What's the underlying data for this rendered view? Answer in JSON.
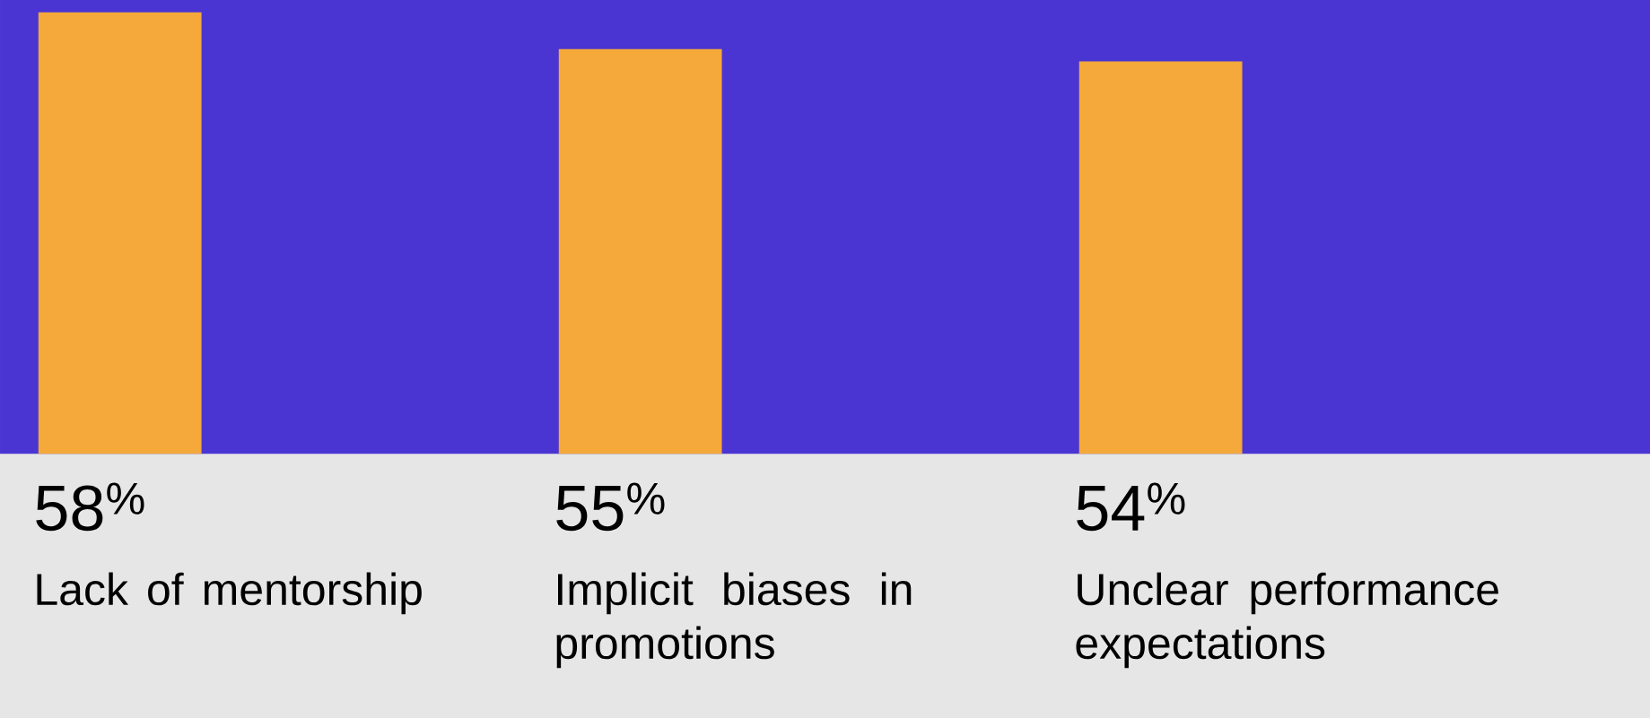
{
  "chart_data": {
    "type": "bar",
    "categories": [
      "Lack of mentorship",
      "Implicit biases in promotions",
      "Unclear performance expectations"
    ],
    "values": [
      58,
      55,
      54
    ],
    "value_labels": [
      "58$^{%}$",
      "55$^{%}$",
      "54$^{%}$"
    ],
    "color": "#f4a93a",
    "ylim": [
      22,
      59
    ]
  }
}
